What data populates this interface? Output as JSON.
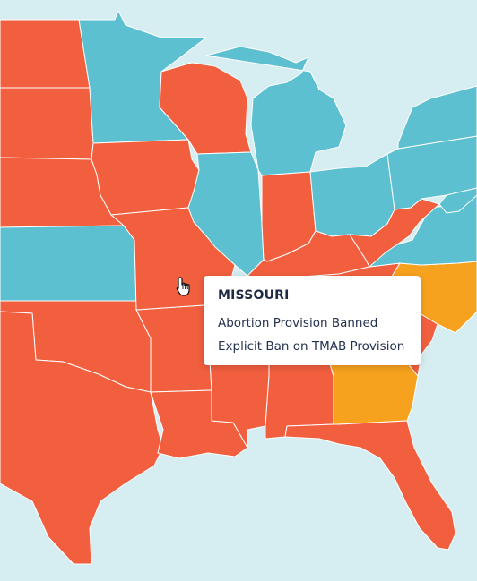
{
  "colors": {
    "water": "#d6edf2",
    "banned": "#f15f3f",
    "protected": "#5dc0d0",
    "mixed": "#f7a21e",
    "border": "#ffffff",
    "highlight_border": "#1a1a1a"
  },
  "states": [
    {
      "id": "ND",
      "status": "banned"
    },
    {
      "id": "SD",
      "status": "banned"
    },
    {
      "id": "NE",
      "status": "banned"
    },
    {
      "id": "KS",
      "status": "protected"
    },
    {
      "id": "OK",
      "status": "banned"
    },
    {
      "id": "TX",
      "status": "banned"
    },
    {
      "id": "MN",
      "status": "protected"
    },
    {
      "id": "IA",
      "status": "banned"
    },
    {
      "id": "MO",
      "status": "banned"
    },
    {
      "id": "AR",
      "status": "banned"
    },
    {
      "id": "LA",
      "status": "banned"
    },
    {
      "id": "WI",
      "status": "banned"
    },
    {
      "id": "IL",
      "status": "protected"
    },
    {
      "id": "MI",
      "status": "protected"
    },
    {
      "id": "IN",
      "status": "banned"
    },
    {
      "id": "OH",
      "status": "protected"
    },
    {
      "id": "KY",
      "status": "banned"
    },
    {
      "id": "TN",
      "status": "banned"
    },
    {
      "id": "MS",
      "status": "banned"
    },
    {
      "id": "AL",
      "status": "banned"
    },
    {
      "id": "GA",
      "status": "mixed"
    },
    {
      "id": "FL",
      "status": "banned"
    },
    {
      "id": "SC",
      "status": "banned"
    },
    {
      "id": "NC",
      "status": "mixed"
    },
    {
      "id": "VA",
      "status": "protected"
    },
    {
      "id": "WV",
      "status": "banned"
    },
    {
      "id": "PA",
      "status": "protected"
    },
    {
      "id": "NY",
      "status": "protected"
    },
    {
      "id": "MD",
      "status": "protected"
    }
  ],
  "tooltip": {
    "state_name": "MISSOURI",
    "lines": [
      "Abortion Provision Banned",
      "Explicit Ban on TMAB Provision"
    ]
  },
  "cursor_icon": "hand-pointer-icon"
}
